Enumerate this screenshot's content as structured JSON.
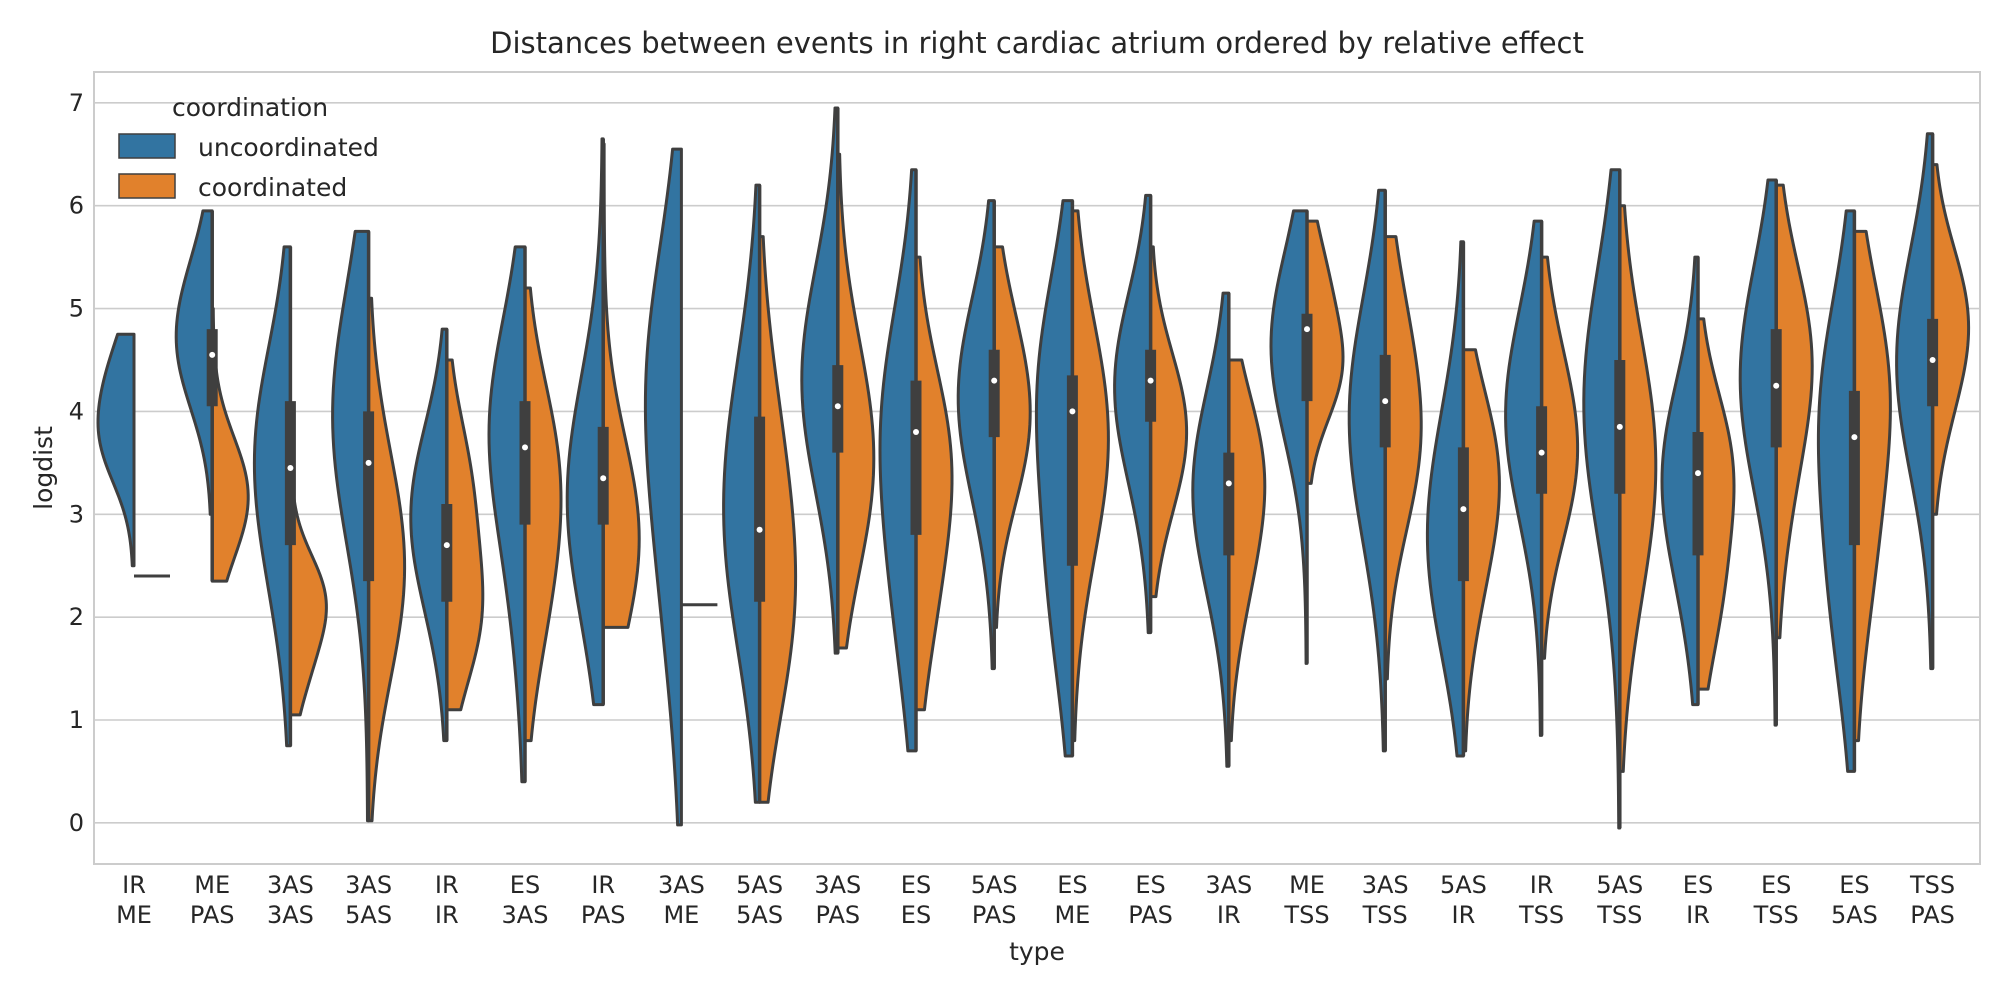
{
  "chart_data": {
    "type": "violin",
    "title": "Distances between events in right cardiac atrium ordered by relative effect",
    "xlabel": "type",
    "ylabel": "logdist",
    "ylim": [
      -0.4,
      7.3
    ],
    "yticks": [
      0,
      1,
      2,
      3,
      4,
      5,
      6,
      7
    ],
    "grid": true,
    "split": true,
    "legend": {
      "title": "coordination",
      "position": "top-left",
      "entries": [
        "uncoordinated",
        "coordinated"
      ]
    },
    "colors": {
      "uncoordinated": "#3274a1",
      "coordinated": "#e1812c",
      "outline": "#3f3f3f",
      "grid": "#cccccc"
    },
    "categories": [
      [
        "IR",
        "ME"
      ],
      [
        "ME",
        "PAS"
      ],
      [
        "3AS",
        "3AS"
      ],
      [
        "3AS",
        "5AS"
      ],
      [
        "IR",
        "IR"
      ],
      [
        "ES",
        "3AS"
      ],
      [
        "IR",
        "PAS"
      ],
      [
        "3AS",
        "ME"
      ],
      [
        "5AS",
        "5AS"
      ],
      [
        "3AS",
        "PAS"
      ],
      [
        "ES",
        "ES"
      ],
      [
        "5AS",
        "PAS"
      ],
      [
        "ES",
        "ME"
      ],
      [
        "ES",
        "PAS"
      ],
      [
        "3AS",
        "IR"
      ],
      [
        "ME",
        "TSS"
      ],
      [
        "3AS",
        "TSS"
      ],
      [
        "5AS",
        "IR"
      ],
      [
        "IR",
        "TSS"
      ],
      [
        "5AS",
        "TSS"
      ],
      [
        "ES",
        "IR"
      ],
      [
        "ES",
        "TSS"
      ],
      [
        "ES",
        "5AS"
      ],
      [
        "TSS",
        "PAS"
      ]
    ],
    "series": [
      {
        "name": "uncoordinated",
        "violins": [
          {
            "min": 2.5,
            "max": 4.75,
            "peaks": [
              [
                3.7,
                0.9
              ],
              [
                4.4,
                0.6
              ]
            ]
          },
          {
            "min": 3.0,
            "max": 5.95,
            "peaks": [
              [
                4.5,
                0.8
              ],
              [
                5.2,
                0.5
              ]
            ]
          },
          {
            "min": 0.75,
            "max": 5.6,
            "peaks": [
              [
                3.8,
                0.6
              ],
              [
                2.6,
                0.3
              ]
            ]
          },
          {
            "min": 0.02,
            "max": 5.75,
            "peaks": [
              [
                3.6,
                0.7
              ],
              [
                4.5,
                0.5
              ]
            ]
          },
          {
            "min": 0.8,
            "max": 4.8,
            "peaks": [
              [
                3.2,
                0.8
              ],
              [
                2.4,
                0.4
              ]
            ]
          },
          {
            "min": 0.4,
            "max": 5.6,
            "peaks": [
              [
                3.9,
                0.8
              ],
              [
                2.2,
                0.2
              ]
            ]
          },
          {
            "min": 1.15,
            "max": 6.65,
            "peaks": [
              [
                3.4,
                0.9
              ],
              [
                2.5,
                0.4
              ]
            ]
          },
          {
            "min": -0.02,
            "max": 6.55,
            "peaks": [
              [
                4.4,
                1.3
              ],
              [
                2.3,
                0.6
              ]
            ]
          },
          {
            "min": 0.2,
            "max": 6.2,
            "peaks": [
              [
                2.6,
                0.9
              ],
              [
                3.9,
                0.6
              ]
            ]
          },
          {
            "min": 1.65,
            "max": 6.95,
            "peaks": [
              [
                4.1,
                0.9
              ],
              [
                4.7,
                0.5
              ]
            ]
          },
          {
            "min": 0.7,
            "max": 6.35,
            "peaks": [
              [
                4.0,
                0.9
              ],
              [
                2.2,
                0.5
              ]
            ]
          },
          {
            "min": 1.5,
            "max": 6.05,
            "peaks": [
              [
                4.3,
                0.9
              ],
              [
                3.5,
                0.3
              ]
            ]
          },
          {
            "min": 0.65,
            "max": 6.05,
            "peaks": [
              [
                4.3,
                0.8
              ],
              [
                2.3,
                0.5
              ]
            ]
          },
          {
            "min": 1.85,
            "max": 6.1,
            "peaks": [
              [
                4.4,
                0.9
              ],
              [
                3.6,
                0.3
              ]
            ]
          },
          {
            "min": 0.55,
            "max": 5.15,
            "peaks": [
              [
                3.4,
                0.9
              ],
              [
                2.6,
                0.3
              ]
            ]
          },
          {
            "min": 1.55,
            "max": 5.95,
            "peaks": [
              [
                4.8,
                1.0
              ],
              [
                4.2,
                0.4
              ]
            ]
          },
          {
            "min": 0.7,
            "max": 6.15,
            "peaks": [
              [
                4.2,
                0.9
              ],
              [
                3.2,
                0.4
              ]
            ]
          },
          {
            "min": 0.65,
            "max": 5.65,
            "peaks": [
              [
                2.4,
                0.9
              ],
              [
                3.5,
                0.6
              ]
            ]
          },
          {
            "min": 0.85,
            "max": 5.85,
            "peaks": [
              [
                3.8,
                0.8
              ],
              [
                4.3,
                0.4
              ]
            ]
          },
          {
            "min": -0.05,
            "max": 6.35,
            "peaks": [
              [
                3.9,
                0.9
              ],
              [
                4.5,
                0.4
              ]
            ]
          },
          {
            "min": 1.15,
            "max": 5.5,
            "peaks": [
              [
                3.5,
                0.9
              ],
              [
                2.4,
                0.3
              ]
            ]
          },
          {
            "min": 0.95,
            "max": 6.25,
            "peaks": [
              [
                4.5,
                0.9
              ],
              [
                3.9,
                0.4
              ]
            ]
          },
          {
            "min": 0.5,
            "max": 5.95,
            "peaks": [
              [
                4.1,
                0.8
              ],
              [
                2.2,
                0.5
              ]
            ]
          },
          {
            "min": 1.5,
            "max": 6.7,
            "peaks": [
              [
                4.7,
                0.8
              ],
              [
                4.0,
                0.4
              ]
            ]
          }
        ]
      },
      {
        "name": "coordinated",
        "violins": [
          {
            "min": 2.4,
            "max": 2.4,
            "peaks": []
          },
          {
            "min": 2.35,
            "max": 5.0,
            "peaks": [
              [
                3.3,
                0.9
              ],
              [
                2.8,
                0.4
              ]
            ]
          },
          {
            "min": 1.05,
            "max": 3.2,
            "peaks": [
              [
                2.2,
                0.9
              ],
              [
                1.5,
                0.4
              ]
            ]
          },
          {
            "min": 0.02,
            "max": 5.1,
            "peaks": [
              [
                2.2,
                0.8
              ],
              [
                3.0,
                0.5
              ]
            ]
          },
          {
            "min": 1.1,
            "max": 4.5,
            "peaks": [
              [
                2.0,
                0.9
              ],
              [
                3.3,
                0.6
              ]
            ]
          },
          {
            "min": 0.8,
            "max": 5.2,
            "peaks": [
              [
                3.5,
                0.8
              ],
              [
                2.2,
                0.5
              ]
            ]
          },
          {
            "min": 1.9,
            "max": 6.6,
            "peaks": [
              [
                2.9,
                0.9
              ],
              [
                2.3,
                0.3
              ]
            ]
          },
          {
            "min": 2.12,
            "max": 2.12,
            "peaks": []
          },
          {
            "min": 0.2,
            "max": 5.7,
            "peaks": [
              [
                2.0,
                0.9
              ],
              [
                3.6,
                0.5
              ]
            ]
          },
          {
            "min": 1.7,
            "max": 6.5,
            "peaks": [
              [
                3.2,
                0.8
              ],
              [
                4.2,
                0.5
              ]
            ]
          },
          {
            "min": 1.1,
            "max": 5.5,
            "peaks": [
              [
                3.6,
                0.8
              ],
              [
                2.2,
                0.4
              ]
            ]
          },
          {
            "min": 1.9,
            "max": 5.6,
            "peaks": [
              [
                3.7,
                0.8
              ],
              [
                4.6,
                0.5
              ]
            ]
          },
          {
            "min": 0.8,
            "max": 5.95,
            "peaks": [
              [
                4.0,
                0.9
              ],
              [
                3.0,
                0.4
              ]
            ]
          },
          {
            "min": 2.2,
            "max": 5.6,
            "peaks": [
              [
                4.0,
                0.8
              ],
              [
                3.3,
                0.4
              ]
            ]
          },
          {
            "min": 0.8,
            "max": 4.5,
            "peaks": [
              [
                3.5,
                0.8
              ],
              [
                2.4,
                0.4
              ]
            ]
          },
          {
            "min": 3.3,
            "max": 5.85,
            "peaks": [
              [
                4.4,
                0.8
              ],
              [
                5.3,
                0.4
              ]
            ]
          },
          {
            "min": 1.4,
            "max": 5.7,
            "peaks": [
              [
                3.6,
                0.8
              ],
              [
                4.8,
                0.4
              ]
            ]
          },
          {
            "min": 0.7,
            "max": 4.6,
            "peaks": [
              [
                3.5,
                0.9
              ],
              [
                2.4,
                0.4
              ]
            ]
          },
          {
            "min": 1.6,
            "max": 5.5,
            "peaks": [
              [
                3.4,
                0.8
              ],
              [
                4.3,
                0.4
              ]
            ]
          },
          {
            "min": 0.5,
            "max": 6.0,
            "peaks": [
              [
                3.8,
                0.8
              ],
              [
                2.6,
                0.4
              ]
            ]
          },
          {
            "min": 1.3,
            "max": 4.9,
            "peaks": [
              [
                3.5,
                0.8
              ],
              [
                2.2,
                0.5
              ]
            ]
          },
          {
            "min": 1.8,
            "max": 6.2,
            "peaks": [
              [
                4.6,
                0.9
              ],
              [
                3.3,
                0.3
              ]
            ]
          },
          {
            "min": 0.8,
            "max": 5.75,
            "peaks": [
              [
                4.3,
                0.8
              ],
              [
                2.6,
                0.4
              ]
            ]
          },
          {
            "min": 3.0,
            "max": 6.4,
            "peaks": [
              [
                5.0,
                0.9
              ],
              [
                4.2,
                0.4
              ]
            ]
          }
        ]
      }
    ],
    "box": {
      "q1": [
        null,
        4.05,
        2.7,
        2.35,
        2.15,
        2.9,
        2.9,
        null,
        2.15,
        3.6,
        2.8,
        3.75,
        2.5,
        3.9,
        2.6,
        4.1,
        3.65,
        2.35,
        3.2,
        3.2,
        2.6,
        3.65,
        2.7,
        4.05
      ],
      "median": [
        null,
        4.55,
        3.45,
        3.5,
        2.7,
        3.65,
        3.35,
        null,
        2.85,
        4.05,
        3.8,
        4.3,
        4.0,
        4.3,
        3.3,
        4.8,
        4.1,
        3.05,
        3.6,
        3.85,
        3.4,
        4.25,
        3.75,
        4.5
      ],
      "q3": [
        null,
        4.8,
        4.1,
        4.0,
        3.1,
        4.1,
        3.85,
        null,
        3.95,
        4.45,
        4.3,
        4.6,
        4.35,
        4.6,
        3.6,
        4.95,
        4.55,
        3.65,
        4.05,
        4.5,
        3.8,
        4.8,
        4.2,
        4.9
      ],
      "whisker_low": [
        null,
        2.35,
        0.75,
        0.02,
        0.8,
        0.4,
        1.15,
        null,
        0.2,
        1.65,
        0.7,
        1.5,
        0.65,
        1.85,
        0.55,
        1.55,
        0.7,
        0.65,
        0.85,
        -0.05,
        1.15,
        0.95,
        0.5,
        1.5
      ],
      "whisker_high": [
        null,
        5.95,
        5.6,
        5.75,
        4.8,
        5.6,
        6.65,
        null,
        6.2,
        6.95,
        6.35,
        6.05,
        6.05,
        6.1,
        5.15,
        5.95,
        6.15,
        5.65,
        5.85,
        6.35,
        5.5,
        6.25,
        5.95,
        6.7
      ]
    }
  }
}
